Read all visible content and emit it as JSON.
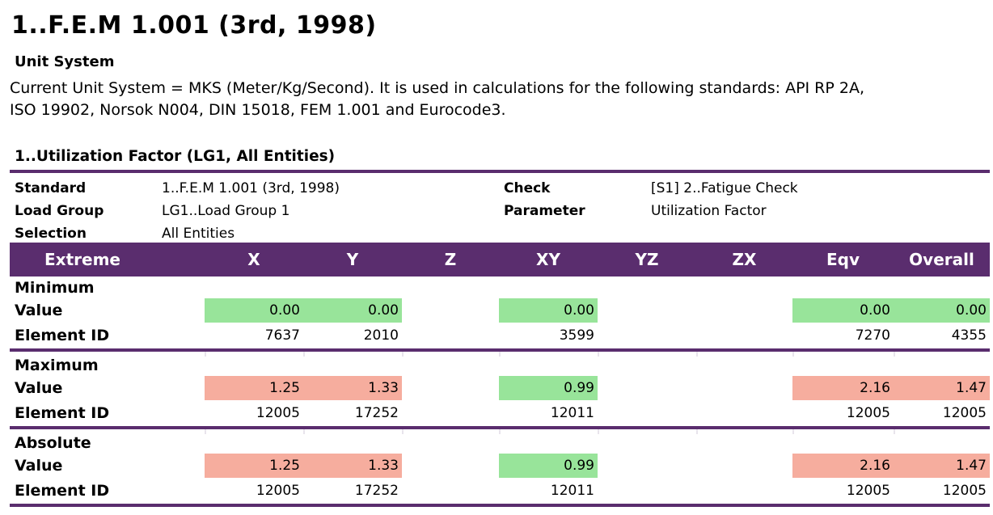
{
  "title": "1..F.E.M 1.001 (3rd, 1998)",
  "unit_system": {
    "heading": "Unit System",
    "line1": "Current Unit System = MKS (Meter/Kg/Second). It is used in calculations for the following standards: API RP 2A,",
    "line2": "ISO 19902, Norsok N004, DIN 15018, FEM 1.001 and Eurocode3."
  },
  "section_title": "1..Utilization Factor (LG1, All Entities)",
  "info": {
    "standard_label": "Standard",
    "standard_value": "1..F.E.M 1.001 (3rd, 1998)",
    "check_label": "Check",
    "check_value": "[S1] 2..Fatigue Check",
    "load_group_label": "Load Group",
    "load_group_value": "LG1..Load Group 1",
    "parameter_label": "Parameter",
    "parameter_value": "Utilization Factor",
    "selection_label": "Selection",
    "selection_value": "All Entities"
  },
  "columns": [
    "Extreme",
    "X",
    "Y",
    "Z",
    "XY",
    "YZ",
    "ZX",
    "Eqv",
    "Overall"
  ],
  "colors": {
    "header_bg": "#5a2d6e",
    "ok": "#98e49a",
    "exceed": "#f6ad9e"
  },
  "groups": [
    {
      "name": "Minimum",
      "value_label": "Value",
      "id_label": "Element ID",
      "values": {
        "X": "0.00",
        "Y": "0.00",
        "Z": "",
        "XY": "0.00",
        "YZ": "",
        "ZX": "",
        "Eqv": "0.00",
        "Overall": "0.00"
      },
      "status": {
        "X": "ok",
        "Y": "ok",
        "Z": "",
        "XY": "ok",
        "YZ": "",
        "ZX": "",
        "Eqv": "ok",
        "Overall": "ok"
      },
      "ids": {
        "X": "7637",
        "Y": "2010",
        "Z": "",
        "XY": "3599",
        "YZ": "",
        "ZX": "",
        "Eqv": "7270",
        "Overall": "4355"
      }
    },
    {
      "name": "Maximum",
      "value_label": "Value",
      "id_label": "Element ID",
      "values": {
        "X": "1.25",
        "Y": "1.33",
        "Z": "",
        "XY": "0.99",
        "YZ": "",
        "ZX": "",
        "Eqv": "2.16",
        "Overall": "1.47"
      },
      "status": {
        "X": "bad",
        "Y": "bad",
        "Z": "",
        "XY": "ok",
        "YZ": "",
        "ZX": "",
        "Eqv": "bad",
        "Overall": "bad"
      },
      "ids": {
        "X": "12005",
        "Y": "17252",
        "Z": "",
        "XY": "12011",
        "YZ": "",
        "ZX": "",
        "Eqv": "12005",
        "Overall": "12005"
      }
    },
    {
      "name": "Absolute",
      "value_label": "Value",
      "id_label": "Element ID",
      "values": {
        "X": "1.25",
        "Y": "1.33",
        "Z": "",
        "XY": "0.99",
        "YZ": "",
        "ZX": "",
        "Eqv": "2.16",
        "Overall": "1.47"
      },
      "status": {
        "X": "bad",
        "Y": "bad",
        "Z": "",
        "XY": "ok",
        "YZ": "",
        "ZX": "",
        "Eqv": "bad",
        "Overall": "bad"
      },
      "ids": {
        "X": "12005",
        "Y": "17252",
        "Z": "",
        "XY": "12011",
        "YZ": "",
        "ZX": "",
        "Eqv": "12005",
        "Overall": "12005"
      }
    }
  ]
}
